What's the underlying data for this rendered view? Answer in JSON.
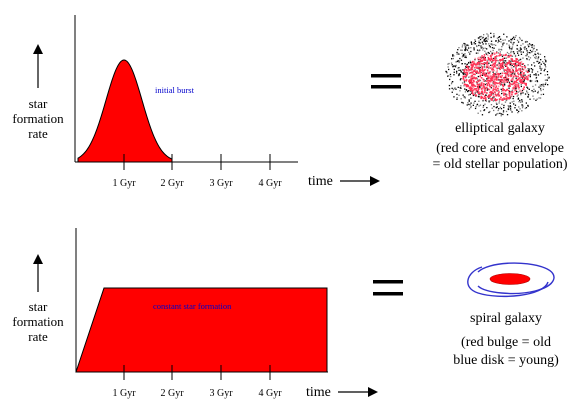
{
  "top_panel": {
    "ylabel_lines": [
      "star",
      "formation",
      "rate"
    ],
    "xlabel": "time",
    "ticks": [
      "1 Gyr",
      "2 Gyr",
      "3 Gyr",
      "4 Gyr"
    ],
    "annotation": "initial burst",
    "equals": "=",
    "galaxy_title": "elliptical galaxy",
    "galaxy_desc": [
      "(red core and envelope",
      "= old stellar population)"
    ]
  },
  "bottom_panel": {
    "ylabel_lines": [
      "star",
      "formation",
      "rate"
    ],
    "xlabel": "time",
    "ticks": [
      "1 Gyr",
      "2 Gyr",
      "3 Gyr",
      "4 Gyr"
    ],
    "annotation": "constant star formation",
    "equals": "=",
    "galaxy_title": "spiral galaxy",
    "galaxy_desc": [
      "(red bulge = old",
      "blue disk = young)"
    ]
  },
  "colors": {
    "fill": "#ff0000",
    "annotation": "#0000cc",
    "disk": "#3333cc"
  }
}
